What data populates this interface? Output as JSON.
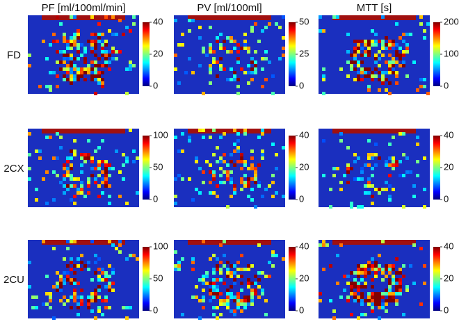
{
  "columns": [
    "PF [ml/100ml/min]",
    "PV [ml/100ml]",
    "MTT [s]"
  ],
  "rows": [
    {
      "label": "FD",
      "colorbars": [
        [
          0,
          20,
          40
        ],
        [
          0,
          25,
          50
        ],
        [
          0,
          100,
          200
        ]
      ]
    },
    {
      "label": "2CX",
      "colorbars": [
        [
          0,
          50,
          100
        ],
        [
          0,
          20,
          40
        ],
        [
          0,
          20,
          40
        ]
      ]
    },
    {
      "label": "2CU",
      "colorbars": [
        [
          0,
          50,
          100
        ],
        [
          0,
          20,
          40
        ],
        [
          0,
          20,
          40
        ]
      ]
    }
  ]
}
